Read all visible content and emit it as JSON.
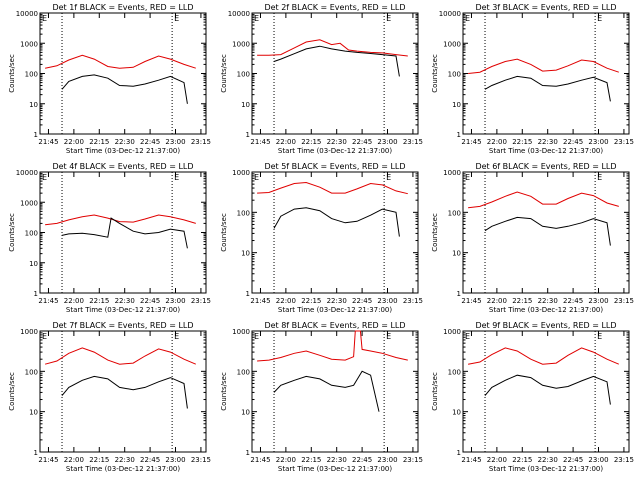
{
  "figure": {
    "series_legend_note": "BLACK = Events, RED = LLD",
    "colors": {
      "events": "#000000",
      "lld": "#e00000",
      "axes": "#000000",
      "background": "#ffffff"
    }
  },
  "chart_data": [
    {
      "type": "line",
      "scale_y": "log",
      "ylim": [
        1,
        10000
      ],
      "title": "Det 1f BLACK = Events, RED = LLD",
      "xlabel": "Start Time (03-Dec-12 21:37:00)",
      "ylabel": "Counts/sec",
      "x_tick_labels": [
        "21:45",
        "22:00",
        "22:15",
        "22:30",
        "22:45",
        "23:00",
        "23:15"
      ],
      "y_tick_labels": [
        "1",
        "10",
        "100",
        "1000",
        "10000"
      ],
      "annotations": [
        "E",
        "E"
      ],
      "marker_times": [
        "21:53",
        "22:58"
      ],
      "red": {
        "x": [
          "21:43",
          "21:50",
          "21:57",
          "22:05",
          "22:12",
          "22:20",
          "22:27",
          "22:35",
          "22:42",
          "22:50",
          "22:57",
          "23:05",
          "23:12"
        ],
        "y": [
          150,
          180,
          280,
          400,
          300,
          170,
          150,
          160,
          250,
          380,
          300,
          200,
          150
        ]
      },
      "black": {
        "x": [
          "21:53",
          "21:57",
          "22:05",
          "22:12",
          "22:20",
          "22:27",
          "22:35",
          "22:42",
          "22:50",
          "22:57",
          "23:05",
          "23:07"
        ],
        "y": [
          30,
          55,
          80,
          90,
          70,
          40,
          38,
          45,
          60,
          80,
          50,
          10
        ]
      }
    },
    {
      "type": "line",
      "scale_y": "log",
      "ylim": [
        1,
        10000
      ],
      "title": "Det 2f BLACK = Events, RED = LLD",
      "xlabel": "Start Time (03-Dec-12 21:37:00)",
      "ylabel": "Counts/sec",
      "x_tick_labels": [
        "21:45",
        "22:00",
        "22:15",
        "22:30",
        "22:45",
        "23:00",
        "23:15"
      ],
      "y_tick_labels": [
        "1",
        "10",
        "100",
        "1000",
        "10000"
      ],
      "annotations": [
        "E",
        "E"
      ],
      "marker_times": [
        "21:53",
        "22:58"
      ],
      "red": {
        "x": [
          "21:43",
          "21:50",
          "21:57",
          "22:05",
          "22:12",
          "22:20",
          "22:27",
          "22:32",
          "22:37",
          "22:42",
          "22:50",
          "22:57",
          "23:05",
          "23:12"
        ],
        "y": [
          400,
          400,
          420,
          700,
          1100,
          1300,
          900,
          1000,
          600,
          550,
          500,
          480,
          420,
          380
        ]
      },
      "black": {
        "x": [
          "21:53",
          "21:57",
          "22:05",
          "22:12",
          "22:20",
          "22:27",
          "22:35",
          "22:42",
          "22:50",
          "22:57",
          "23:05",
          "23:07"
        ],
        "y": [
          250,
          300,
          450,
          650,
          800,
          650,
          550,
          500,
          460,
          420,
          380,
          80
        ]
      }
    },
    {
      "type": "line",
      "scale_y": "log",
      "ylim": [
        1,
        10000
      ],
      "title": "Det 3f BLACK = Events, RED = LLD",
      "xlabel": "Start Time (03-Dec-12 21:37:00)",
      "ylabel": "Counts/sec",
      "x_tick_labels": [
        "21:45",
        "22:00",
        "22:15",
        "22:30",
        "22:45",
        "23:00",
        "23:15"
      ],
      "y_tick_labels": [
        "1",
        "10",
        "100",
        "1000",
        "10000"
      ],
      "annotations": [
        "E",
        "E"
      ],
      "marker_times": [
        "21:53",
        "22:58"
      ],
      "red": {
        "x": [
          "21:43",
          "21:50",
          "21:57",
          "22:05",
          "22:12",
          "22:20",
          "22:27",
          "22:35",
          "22:42",
          "22:50",
          "22:57",
          "23:05",
          "23:12"
        ],
        "y": [
          100,
          110,
          170,
          250,
          300,
          200,
          120,
          130,
          180,
          280,
          250,
          150,
          110
        ]
      },
      "black": {
        "x": [
          "21:53",
          "21:57",
          "22:05",
          "22:12",
          "22:20",
          "22:27",
          "22:35",
          "22:42",
          "22:50",
          "22:57",
          "23:05",
          "23:07"
        ],
        "y": [
          30,
          40,
          60,
          80,
          70,
          40,
          38,
          45,
          60,
          75,
          50,
          12
        ]
      }
    },
    {
      "type": "line",
      "scale_y": "log",
      "ylim": [
        1,
        10000
      ],
      "title": "Det 4f BLACK = Events, RED = LLD",
      "xlabel": "Start Time (03-Dec-12 21:37:00)",
      "ylabel": "Counts/sec",
      "x_tick_labels": [
        "21:45",
        "22:00",
        "22:15",
        "22:30",
        "22:45",
        "23:00",
        "23:15"
      ],
      "y_tick_labels": [
        "1",
        "10",
        "100",
        "1000",
        "10000"
      ],
      "annotations": [
        "E",
        "E"
      ],
      "marker_times": [
        "21:53",
        "22:58"
      ],
      "red": {
        "x": [
          "21:43",
          "21:50",
          "21:57",
          "22:05",
          "22:12",
          "22:20",
          "22:27",
          "22:35",
          "22:42",
          "22:50",
          "22:57",
          "23:05",
          "23:12"
        ],
        "y": [
          180,
          200,
          260,
          330,
          380,
          300,
          230,
          220,
          280,
          380,
          330,
          260,
          200
        ]
      },
      "black": {
        "x": [
          "21:53",
          "21:57",
          "22:05",
          "22:12",
          "22:20",
          "22:22",
          "22:27",
          "22:35",
          "22:42",
          "22:50",
          "22:57",
          "23:05",
          "23:07"
        ],
        "y": [
          80,
          90,
          95,
          85,
          70,
          300,
          200,
          110,
          90,
          100,
          130,
          110,
          30
        ]
      }
    },
    {
      "type": "line",
      "scale_y": "log",
      "ylim": [
        1,
        1000
      ],
      "title": "Det 5f BLACK = Events, RED = LLD",
      "xlabel": "Start Time (03-Dec-12 21:37:00)",
      "ylabel": "Counts/sec",
      "x_tick_labels": [
        "21:45",
        "22:00",
        "22:15",
        "22:30",
        "22:45",
        "23:00",
        "23:15"
      ],
      "y_tick_labels": [
        "1",
        "10",
        "100",
        "1000"
      ],
      "annotations": [
        "E",
        "E"
      ],
      "marker_times": [
        "21:53",
        "22:58"
      ],
      "red": {
        "x": [
          "21:43",
          "21:50",
          "21:57",
          "22:05",
          "22:12",
          "22:20",
          "22:27",
          "22:35",
          "22:42",
          "22:50",
          "22:57",
          "23:05",
          "23:12"
        ],
        "y": [
          300,
          310,
          400,
          520,
          550,
          420,
          300,
          300,
          380,
          520,
          480,
          340,
          290
        ]
      },
      "black": {
        "x": [
          "21:53",
          "21:57",
          "22:05",
          "22:12",
          "22:20",
          "22:27",
          "22:35",
          "22:42",
          "22:50",
          "22:57",
          "23:05",
          "23:07"
        ],
        "y": [
          40,
          80,
          120,
          130,
          110,
          70,
          55,
          60,
          85,
          120,
          100,
          25
        ]
      }
    },
    {
      "type": "line",
      "scale_y": "log",
      "ylim": [
        1,
        1000
      ],
      "title": "Det 6f BLACK = Events, RED = LLD",
      "xlabel": "Start Time (03-Dec-12 21:37:00)",
      "ylabel": "Counts/sec",
      "x_tick_labels": [
        "21:45",
        "22:00",
        "22:15",
        "22:30",
        "22:45",
        "23:00",
        "23:15"
      ],
      "y_tick_labels": [
        "1",
        "10",
        "100",
        "1000"
      ],
      "annotations": [
        "E",
        "E"
      ],
      "marker_times": [
        "21:53",
        "22:58"
      ],
      "red": {
        "x": [
          "21:43",
          "21:50",
          "21:57",
          "22:05",
          "22:12",
          "22:20",
          "22:27",
          "22:35",
          "22:42",
          "22:50",
          "22:57",
          "23:05",
          "23:12"
        ],
        "y": [
          130,
          140,
          180,
          250,
          320,
          250,
          160,
          160,
          220,
          300,
          260,
          170,
          140
        ]
      },
      "black": {
        "x": [
          "21:53",
          "21:57",
          "22:05",
          "22:12",
          "22:20",
          "22:27",
          "22:35",
          "22:42",
          "22:50",
          "22:57",
          "23:05",
          "23:07"
        ],
        "y": [
          35,
          45,
          60,
          75,
          70,
          45,
          40,
          45,
          55,
          70,
          55,
          15
        ]
      }
    },
    {
      "type": "line",
      "scale_y": "log",
      "ylim": [
        1,
        1000
      ],
      "title": "Det 7f BLACK = Events, RED = LLD",
      "xlabel": "Start Time (03-Dec-12 21:37:00)",
      "ylabel": "Counts/sec",
      "x_tick_labels": [
        "21:45",
        "22:00",
        "22:15",
        "22:30",
        "22:45",
        "23:00",
        "23:15"
      ],
      "y_tick_labels": [
        "1",
        "10",
        "100",
        "1000"
      ],
      "annotations": [
        "E",
        "E"
      ],
      "marker_times": [
        "21:53",
        "22:58"
      ],
      "red": {
        "x": [
          "21:43",
          "21:50",
          "21:57",
          "22:05",
          "22:12",
          "22:20",
          "22:27",
          "22:35",
          "22:42",
          "22:50",
          "22:57",
          "23:05",
          "23:12"
        ],
        "y": [
          150,
          180,
          280,
          380,
          300,
          190,
          150,
          160,
          240,
          360,
          300,
          200,
          150
        ]
      },
      "black": {
        "x": [
          "21:53",
          "21:57",
          "22:05",
          "22:12",
          "22:20",
          "22:27",
          "22:35",
          "22:42",
          "22:50",
          "22:57",
          "23:05",
          "23:07"
        ],
        "y": [
          25,
          40,
          60,
          75,
          65,
          40,
          35,
          40,
          55,
          70,
          50,
          12
        ]
      }
    },
    {
      "type": "line",
      "scale_y": "log",
      "ylim": [
        1,
        1000
      ],
      "title": "Det 8f BLACK = Events, RED = LLD",
      "xlabel": "Start Time (03-Dec-12 21:37:00)",
      "ylabel": "Counts/sec",
      "x_tick_labels": [
        "21:45",
        "22:00",
        "22:15",
        "22:30",
        "22:45",
        "23:00",
        "23:15"
      ],
      "y_tick_labels": [
        "1",
        "10",
        "100",
        "1000"
      ],
      "annotations": [
        "E",
        "E"
      ],
      "marker_times": [
        "21:53",
        "22:58"
      ],
      "red": {
        "x": [
          "21:43",
          "21:50",
          "21:57",
          "22:05",
          "22:12",
          "22:20",
          "22:27",
          "22:35",
          "22:40",
          "22:41",
          "22:44",
          "22:45",
          "22:50",
          "22:57",
          "23:05",
          "23:12"
        ],
        "y": [
          180,
          190,
          220,
          280,
          320,
          250,
          200,
          190,
          230,
          1000,
          1000,
          350,
          320,
          280,
          220,
          190
        ]
      },
      "black": {
        "x": [
          "21:53",
          "21:57",
          "22:05",
          "22:12",
          "22:20",
          "22:27",
          "22:35",
          "22:40",
          "22:45",
          "22:50",
          "22:55"
        ],
        "y": [
          30,
          45,
          60,
          75,
          65,
          45,
          40,
          45,
          100,
          80,
          10
        ]
      }
    },
    {
      "type": "line",
      "scale_y": "log",
      "ylim": [
        1,
        1000
      ],
      "title": "Det 9f BLACK = Events, RED = LLD",
      "xlabel": "Start Time (03-Dec-12 21:37:00)",
      "ylabel": "Counts/sec",
      "x_tick_labels": [
        "21:45",
        "22:00",
        "22:15",
        "22:30",
        "22:45",
        "23:00",
        "23:15"
      ],
      "y_tick_labels": [
        "1",
        "10",
        "100",
        "1000"
      ],
      "annotations": [
        "E",
        "E"
      ],
      "marker_times": [
        "21:53",
        "22:58"
      ],
      "red": {
        "x": [
          "21:43",
          "21:50",
          "21:57",
          "22:05",
          "22:12",
          "22:20",
          "22:27",
          "22:35",
          "22:42",
          "22:50",
          "22:57",
          "23:05",
          "23:12"
        ],
        "y": [
          150,
          170,
          260,
          380,
          320,
          200,
          150,
          160,
          250,
          380,
          300,
          200,
          150
        ]
      },
      "black": {
        "x": [
          "21:53",
          "21:57",
          "22:05",
          "22:12",
          "22:20",
          "22:27",
          "22:35",
          "22:42",
          "22:50",
          "22:57",
          "23:05",
          "23:07"
        ],
        "y": [
          25,
          40,
          60,
          80,
          70,
          45,
          38,
          42,
          58,
          75,
          55,
          15
        ]
      }
    }
  ]
}
